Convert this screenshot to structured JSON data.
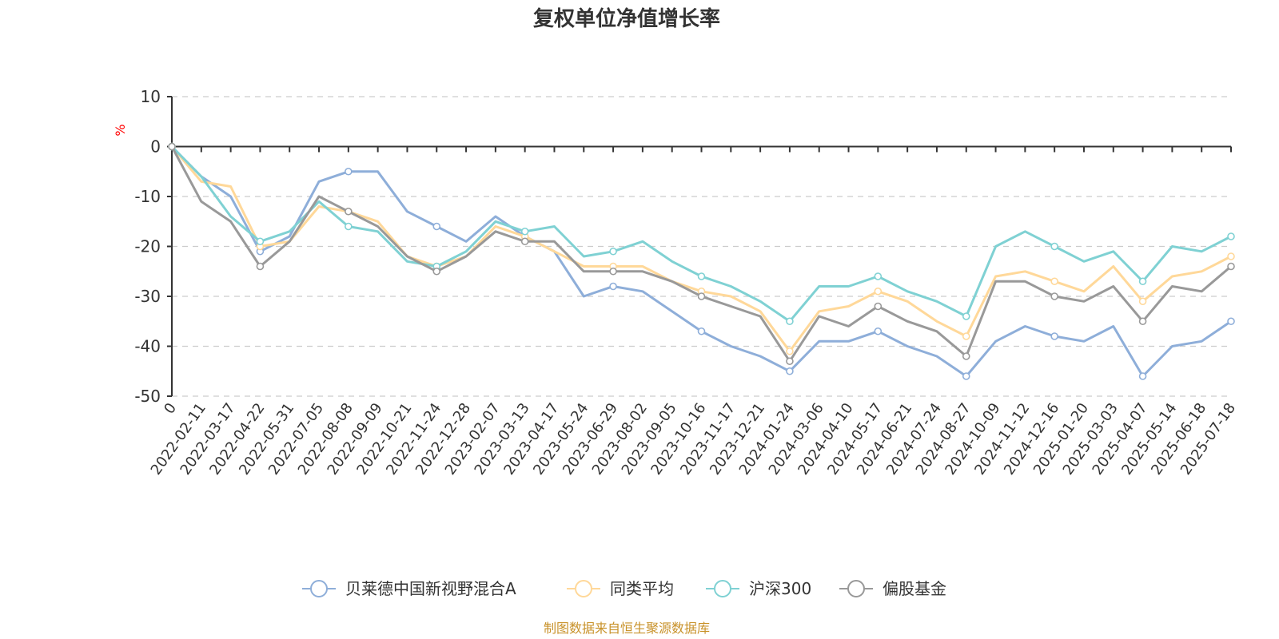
{
  "chart_data": {
    "type": "line",
    "title": "复权单位净值增长率",
    "ylabel": "%",
    "ylim": [
      -50,
      10
    ],
    "yticks": [
      10,
      0,
      -10,
      -20,
      -30,
      -40,
      -50
    ],
    "grid": true,
    "legend_position": "bottom",
    "x": [
      "0",
      "2022-02-11",
      "2022-03-17",
      "2022-04-22",
      "2022-05-31",
      "2022-07-05",
      "2022-08-08",
      "2022-09-09",
      "2022-10-21",
      "2022-11-24",
      "2022-12-28",
      "2023-02-07",
      "2023-03-13",
      "2023-04-17",
      "2023-05-24",
      "2023-06-29",
      "2023-08-02",
      "2023-09-05",
      "2023-10-16",
      "2023-11-17",
      "2023-12-21",
      "2024-01-24",
      "2024-03-06",
      "2024-04-10",
      "2024-05-17",
      "2024-06-21",
      "2024-07-24",
      "2024-08-27",
      "2024-10-09",
      "2024-11-12",
      "2024-12-16",
      "2025-01-20",
      "2025-03-03",
      "2025-04-07",
      "2025-05-14",
      "2025-06-18",
      "2025-07-18"
    ],
    "series": [
      {
        "name": "贝莱德中国新视野混合A",
        "color": "#8eaed9",
        "values": [
          0,
          -6,
          -10,
          -21,
          -18,
          -7,
          -5,
          -5,
          -13,
          -16,
          -19,
          -14,
          -18,
          -21,
          -30,
          -28,
          -29,
          -33,
          -37,
          -40,
          -42,
          -45,
          -39,
          -39,
          -37,
          -40,
          -42,
          -46,
          -39,
          -36,
          -38,
          -39,
          -36,
          -46,
          -40,
          -39,
          -35
        ]
      },
      {
        "name": "同类平均",
        "color": "#ffd899",
        "values": [
          0,
          -7,
          -8,
          -20,
          -19,
          -12,
          -13,
          -15,
          -22,
          -24,
          -22,
          -16,
          -18,
          -21,
          -24,
          -24,
          -24,
          -27,
          -29,
          -30,
          -33,
          -41,
          -33,
          -32,
          -29,
          -31,
          -35,
          -38,
          -26,
          -25,
          -27,
          -29,
          -24,
          -31,
          -26,
          -25,
          -22
        ]
      },
      {
        "name": "沪深300",
        "color": "#7fd1d3",
        "values": [
          0,
          -6,
          -14,
          -19,
          -17,
          -11,
          -16,
          -17,
          -23,
          -24,
          -21,
          -15,
          -17,
          -16,
          -22,
          -21,
          -19,
          -23,
          -26,
          -28,
          -31,
          -35,
          -28,
          -28,
          -26,
          -29,
          -31,
          -34,
          -20,
          -17,
          -20,
          -23,
          -21,
          -27,
          -20,
          -21,
          -18
        ]
      },
      {
        "name": "偏股基金",
        "color": "#999999",
        "values": [
          0,
          -11,
          -15,
          -24,
          -19,
          -10,
          -13,
          -16,
          -22,
          -25,
          -22,
          -17,
          -19,
          -19,
          -25,
          -25,
          -25,
          -27,
          -30,
          -32,
          -34,
          -43,
          -34,
          -36,
          -32,
          -35,
          -37,
          -42,
          -27,
          -27,
          -30,
          -31,
          -28,
          -35,
          -28,
          -29,
          -24
        ]
      }
    ]
  },
  "source_note": "制图数据来自恒生聚源数据库"
}
